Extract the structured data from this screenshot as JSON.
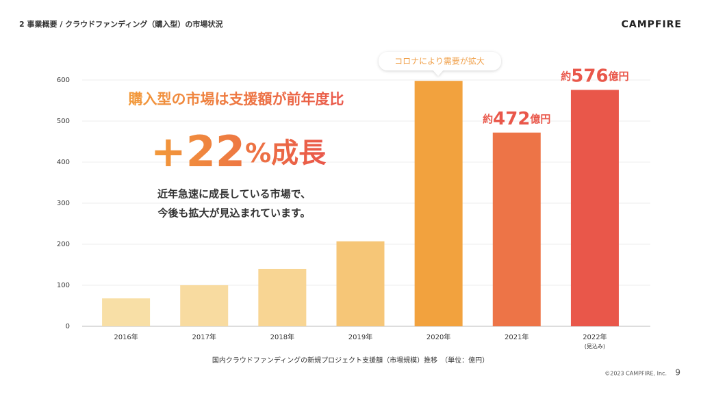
{
  "header": {
    "title": "2  事業概要 /  クラウドファンディング（購入型）の市場状況",
    "logo": "CAMPFIRE"
  },
  "headline": {
    "lead": "購入型の市場は支援額が前年度比",
    "growth_value": "+22",
    "growth_unit": "%",
    "growth_word": "成長",
    "body": [
      "近年急速に成長している市場で、",
      "今後も拡大が見込まれています。"
    ]
  },
  "callout": "コロナにより需要が拡大",
  "chart_data": {
    "type": "bar",
    "categories": [
      "2016年",
      "2017年",
      "2018年",
      "2019年",
      "2020年",
      "2021年",
      "2022年\n(見込み)"
    ],
    "values": [
      68,
      100,
      140,
      207,
      598,
      472,
      576
    ],
    "value_labels": [
      null,
      null,
      null,
      null,
      null,
      "約472億円",
      "約576億円"
    ],
    "colors": [
      "#f8dfa6",
      "#f8dba0",
      "#f8d593",
      "#f6c677",
      "#f2a23e",
      "#ed7447",
      "#e9574a"
    ],
    "ylim": [
      0,
      600
    ],
    "yticks": [
      0,
      100,
      200,
      300,
      400,
      500,
      600
    ],
    "grid": true,
    "caption": "国内クラウドファンディングの新規プロジェクト支援額（市場規模）推移　（単位：億円）"
  },
  "footer": {
    "copyright": "©2023 CAMPFIRE, Inc.",
    "page": "9"
  }
}
